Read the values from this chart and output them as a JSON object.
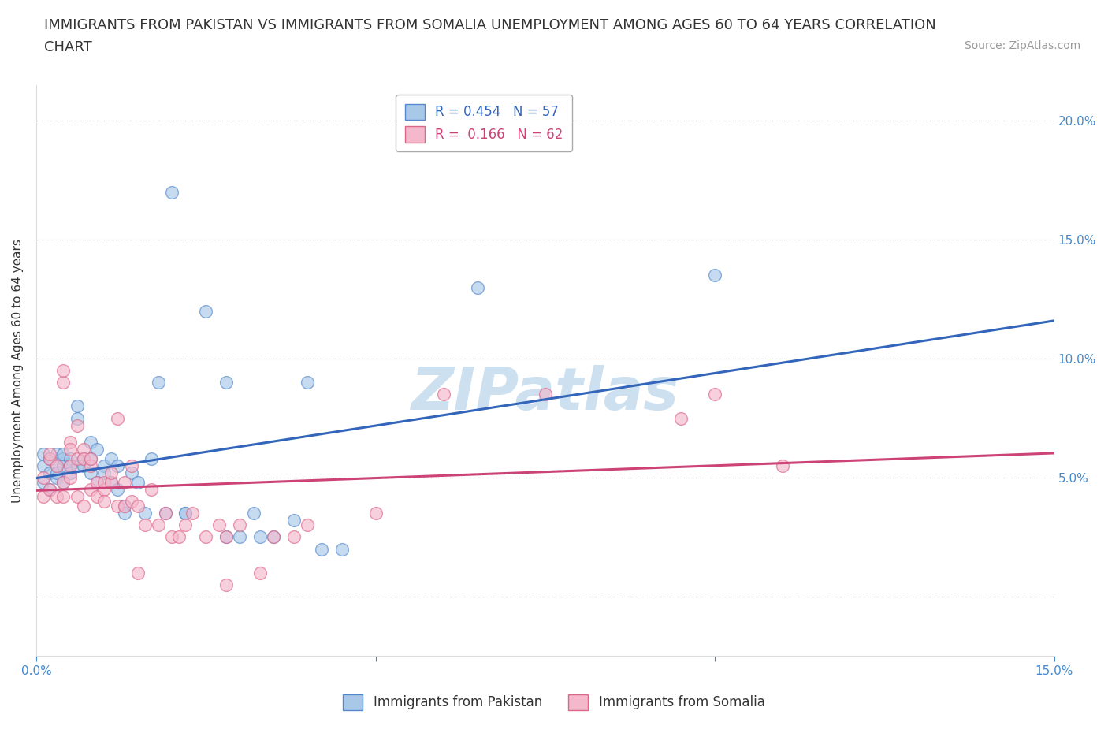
{
  "title_line1": "IMMIGRANTS FROM PAKISTAN VS IMMIGRANTS FROM SOMALIA UNEMPLOYMENT AMONG AGES 60 TO 64 YEARS CORRELATION",
  "title_line2": "CHART",
  "source": "Source: ZipAtlas.com",
  "ylabel": "Unemployment Among Ages 60 to 64 years",
  "xlim": [
    0.0,
    0.15
  ],
  "ylim": [
    -0.025,
    0.215
  ],
  "xticks": [
    0.0,
    0.05,
    0.1,
    0.15
  ],
  "xtick_labels": [
    "0.0%",
    "",
    "",
    "15.0%"
  ],
  "yticks_right": [
    0.0,
    0.05,
    0.1,
    0.15,
    0.2
  ],
  "ytick_labels_right": [
    "",
    "5.0%",
    "10.0%",
    "15.0%",
    "20.0%"
  ],
  "pakistan_color": "#a8c8e8",
  "somalia_color": "#f4b8cc",
  "pakistan_edge_color": "#5588cc",
  "somalia_edge_color": "#dd6688",
  "pakistan_line_color": "#3366bb",
  "somalia_line_color": "#cc4477",
  "r_pakistan": 0.454,
  "n_pakistan": 57,
  "r_somalia": 0.166,
  "n_somalia": 62,
  "legend_label_pakistan": "Immigrants from Pakistan",
  "legend_label_somalia": "Immigrants from Somalia",
  "pakistan_scatter": [
    [
      0.001,
      0.055
    ],
    [
      0.001,
      0.048
    ],
    [
      0.001,
      0.06
    ],
    [
      0.002,
      0.052
    ],
    [
      0.002,
      0.058
    ],
    [
      0.002,
      0.045
    ],
    [
      0.003,
      0.055
    ],
    [
      0.003,
      0.06
    ],
    [
      0.003,
      0.05
    ],
    [
      0.003,
      0.052
    ],
    [
      0.004,
      0.058
    ],
    [
      0.004,
      0.048
    ],
    [
      0.004,
      0.055
    ],
    [
      0.004,
      0.06
    ],
    [
      0.005,
      0.058
    ],
    [
      0.005,
      0.055
    ],
    [
      0.005,
      0.052
    ],
    [
      0.006,
      0.075
    ],
    [
      0.006,
      0.08
    ],
    [
      0.006,
      0.055
    ],
    [
      0.007,
      0.058
    ],
    [
      0.007,
      0.055
    ],
    [
      0.008,
      0.052
    ],
    [
      0.008,
      0.065
    ],
    [
      0.008,
      0.058
    ],
    [
      0.009,
      0.048
    ],
    [
      0.009,
      0.062
    ],
    [
      0.01,
      0.055
    ],
    [
      0.01,
      0.052
    ],
    [
      0.011,
      0.058
    ],
    [
      0.011,
      0.048
    ],
    [
      0.012,
      0.055
    ],
    [
      0.012,
      0.045
    ],
    [
      0.013,
      0.038
    ],
    [
      0.013,
      0.035
    ],
    [
      0.014,
      0.052
    ],
    [
      0.015,
      0.048
    ],
    [
      0.016,
      0.035
    ],
    [
      0.017,
      0.058
    ],
    [
      0.018,
      0.09
    ],
    [
      0.019,
      0.035
    ],
    [
      0.02,
      0.17
    ],
    [
      0.022,
      0.035
    ],
    [
      0.022,
      0.035
    ],
    [
      0.025,
      0.12
    ],
    [
      0.028,
      0.09
    ],
    [
      0.028,
      0.025
    ],
    [
      0.03,
      0.025
    ],
    [
      0.032,
      0.035
    ],
    [
      0.033,
      0.025
    ],
    [
      0.035,
      0.025
    ],
    [
      0.038,
      0.032
    ],
    [
      0.04,
      0.09
    ],
    [
      0.042,
      0.02
    ],
    [
      0.045,
      0.02
    ],
    [
      0.065,
      0.13
    ],
    [
      0.1,
      0.135
    ]
  ],
  "somalia_scatter": [
    [
      0.001,
      0.05
    ],
    [
      0.001,
      0.042
    ],
    [
      0.002,
      0.058
    ],
    [
      0.002,
      0.045
    ],
    [
      0.002,
      0.06
    ],
    [
      0.003,
      0.042
    ],
    [
      0.003,
      0.055
    ],
    [
      0.004,
      0.048
    ],
    [
      0.004,
      0.042
    ],
    [
      0.004,
      0.09
    ],
    [
      0.004,
      0.095
    ],
    [
      0.005,
      0.05
    ],
    [
      0.005,
      0.055
    ],
    [
      0.005,
      0.065
    ],
    [
      0.005,
      0.062
    ],
    [
      0.006,
      0.042
    ],
    [
      0.006,
      0.058
    ],
    [
      0.006,
      0.072
    ],
    [
      0.007,
      0.038
    ],
    [
      0.007,
      0.062
    ],
    [
      0.007,
      0.058
    ],
    [
      0.008,
      0.055
    ],
    [
      0.008,
      0.058
    ],
    [
      0.008,
      0.045
    ],
    [
      0.009,
      0.048
    ],
    [
      0.009,
      0.042
    ],
    [
      0.01,
      0.045
    ],
    [
      0.01,
      0.048
    ],
    [
      0.01,
      0.04
    ],
    [
      0.011,
      0.048
    ],
    [
      0.011,
      0.052
    ],
    [
      0.012,
      0.038
    ],
    [
      0.012,
      0.075
    ],
    [
      0.013,
      0.038
    ],
    [
      0.013,
      0.048
    ],
    [
      0.014,
      0.04
    ],
    [
      0.014,
      0.055
    ],
    [
      0.015,
      0.038
    ],
    [
      0.015,
      0.01
    ],
    [
      0.016,
      0.03
    ],
    [
      0.017,
      0.045
    ],
    [
      0.018,
      0.03
    ],
    [
      0.019,
      0.035
    ],
    [
      0.02,
      0.025
    ],
    [
      0.021,
      0.025
    ],
    [
      0.022,
      0.03
    ],
    [
      0.023,
      0.035
    ],
    [
      0.025,
      0.025
    ],
    [
      0.027,
      0.03
    ],
    [
      0.028,
      0.025
    ],
    [
      0.028,
      0.005
    ],
    [
      0.03,
      0.03
    ],
    [
      0.033,
      0.01
    ],
    [
      0.035,
      0.025
    ],
    [
      0.038,
      0.025
    ],
    [
      0.04,
      0.03
    ],
    [
      0.05,
      0.035
    ],
    [
      0.06,
      0.085
    ],
    [
      0.075,
      0.085
    ],
    [
      0.095,
      0.075
    ],
    [
      0.1,
      0.085
    ],
    [
      0.11,
      0.055
    ]
  ],
  "background_color": "#ffffff",
  "grid_color": "#cccccc",
  "watermark_text": "ZIPatlas",
  "watermark_color": "#cce0f0",
  "title_fontsize": 13,
  "axis_label_fontsize": 11,
  "tick_fontsize": 11,
  "tick_color": "#4488cc",
  "legend_fontsize": 12
}
